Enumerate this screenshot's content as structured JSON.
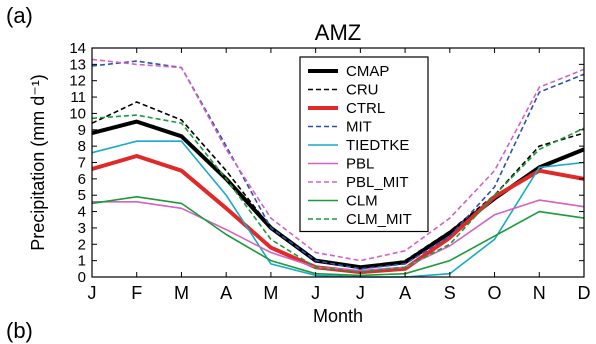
{
  "panel_labels": [
    "(a)",
    "(b)"
  ],
  "chart_data": {
    "type": "line",
    "title": "AMZ",
    "xlabel": "Month",
    "ylabel": "Precipitation (mm d⁻¹)",
    "categories": [
      "J",
      "F",
      "M",
      "A",
      "M",
      "J",
      "J",
      "A",
      "S",
      "O",
      "N",
      "D"
    ],
    "ylim": [
      0,
      14
    ],
    "yticks": [
      0,
      1,
      2,
      3,
      4,
      5,
      6,
      7,
      8,
      9,
      10,
      11,
      12,
      13,
      14
    ],
    "grid": false,
    "legend_position": "top-center",
    "series": [
      {
        "name": "CMAP",
        "color": "#000000",
        "dashed": false,
        "width": 4,
        "values": [
          8.8,
          9.5,
          8.6,
          6.0,
          3.0,
          1.0,
          0.6,
          0.9,
          2.7,
          4.8,
          6.7,
          7.8
        ]
      },
      {
        "name": "CRU",
        "color": "#000000",
        "dashed": true,
        "width": 1.6,
        "values": [
          9.4,
          10.7,
          9.6,
          6.5,
          3.0,
          1.0,
          0.5,
          1.0,
          2.8,
          5.0,
          8.0,
          8.8
        ]
      },
      {
        "name": "CTRL",
        "color": "#e02a2a",
        "dashed": false,
        "width": 4,
        "values": [
          6.6,
          7.4,
          6.5,
          4.2,
          1.8,
          0.6,
          0.3,
          0.5,
          2.4,
          4.9,
          6.5,
          6.0
        ]
      },
      {
        "name": "MIT",
        "color": "#2b4fb5",
        "dashed": true,
        "width": 1.6,
        "values": [
          12.9,
          13.2,
          12.8,
          8.0,
          3.0,
          1.0,
          0.5,
          0.8,
          2.5,
          5.5,
          11.3,
          12.4
        ]
      },
      {
        "name": "TIEDTKE",
        "color": "#17a9c9",
        "dashed": false,
        "width": 1.6,
        "values": [
          7.6,
          8.3,
          8.3,
          5.0,
          0.8,
          0.1,
          0.0,
          0.0,
          0.2,
          2.3,
          6.7,
          7.0
        ]
      },
      {
        "name": "PBL",
        "color": "#d462c2",
        "dashed": false,
        "width": 1.6,
        "values": [
          4.6,
          4.6,
          4.2,
          2.9,
          1.5,
          0.6,
          0.4,
          0.6,
          1.9,
          3.8,
          4.7,
          4.3
        ]
      },
      {
        "name": "PBL_MIT",
        "color": "#d462c2",
        "dashed": true,
        "width": 1.6,
        "values": [
          13.3,
          13.0,
          12.8,
          7.8,
          3.6,
          1.5,
          1.0,
          1.6,
          3.6,
          6.5,
          11.6,
          12.7
        ]
      },
      {
        "name": "CLM",
        "color": "#1c9a38",
        "dashed": false,
        "width": 1.6,
        "values": [
          4.5,
          4.9,
          4.5,
          2.6,
          1.0,
          0.2,
          0.1,
          0.2,
          1.0,
          2.5,
          4.0,
          3.6
        ]
      },
      {
        "name": "CLM_MIT",
        "color": "#1c9a38",
        "dashed": true,
        "width": 1.6,
        "values": [
          9.7,
          9.9,
          9.4,
          6.0,
          2.3,
          0.6,
          0.3,
          0.6,
          2.0,
          5.0,
          7.8,
          9.1
        ]
      }
    ]
  }
}
